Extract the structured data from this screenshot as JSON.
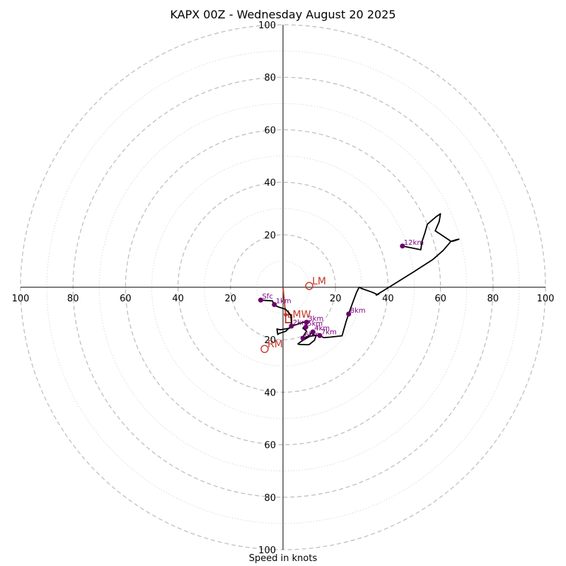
{
  "chart_data": {
    "type": "scatter",
    "title": "KAPX 00Z - Wednesday August 20 2025",
    "xlabel": "Speed in knots",
    "ylabel": "",
    "xlim": [
      -100,
      100
    ],
    "ylim": [
      -100,
      100
    ],
    "rings_major": [
      20,
      40,
      60,
      80,
      100
    ],
    "rings_minor": [
      10,
      30,
      50,
      70,
      90
    ],
    "ticks": {
      "x_left": [
        "100",
        "80",
        "60",
        "40",
        "20"
      ],
      "x_right": [
        "20",
        "40",
        "60",
        "80",
        "100"
      ],
      "y_top": [
        "100",
        "80",
        "60",
        "40",
        "20"
      ],
      "y_bottom": [
        "20",
        "40",
        "60",
        "80",
        "100"
      ]
    },
    "hodograph": [
      [
        -8.5,
        -4.9
      ],
      [
        -4.0,
        -5.2
      ],
      [
        -3.5,
        -6.8
      ],
      [
        -1.5,
        -7.6
      ],
      [
        1.0,
        -8.4
      ],
      [
        2.0,
        -9.5
      ],
      [
        3.0,
        -10.7
      ],
      [
        3.2,
        -13.3
      ],
      [
        3.2,
        -14.8
      ],
      [
        2.5,
        -15.6
      ],
      [
        -1.0,
        -16.2
      ],
      [
        -2.3,
        -15.9
      ],
      [
        -2.0,
        -18.0
      ],
      [
        -1.5,
        -17.6
      ],
      [
        1.0,
        -16.8
      ],
      [
        3.0,
        -14.9
      ],
      [
        5.5,
        -14.1
      ],
      [
        7.5,
        -13.4
      ],
      [
        9.0,
        -13.3
      ],
      [
        10.0,
        -13.3
      ],
      [
        8.2,
        -14.8
      ],
      [
        7.6,
        -15.6
      ],
      [
        9.0,
        -16.7
      ],
      [
        8.0,
        -18.2
      ],
      [
        7.6,
        -19.6
      ],
      [
        10.0,
        -18.4
      ],
      [
        11.0,
        -16.9
      ],
      [
        11.3,
        -18.0
      ],
      [
        12.6,
        -18.4
      ],
      [
        12.0,
        -20.2
      ],
      [
        10.0,
        -21.8
      ],
      [
        9.5,
        -21.9
      ],
      [
        6.3,
        -21.8
      ],
      [
        5.7,
        -21.6
      ],
      [
        7.0,
        -20.6
      ],
      [
        8.5,
        -19.7
      ],
      [
        10.0,
        -18.8
      ],
      [
        12.0,
        -18.3
      ],
      [
        14.0,
        -18.4
      ],
      [
        15.5,
        -19.2
      ],
      [
        18.0,
        -19.0
      ],
      [
        22.5,
        -18.5
      ],
      [
        24.0,
        -13.2
      ],
      [
        25.0,
        -10.2
      ],
      [
        26.5,
        -6.0
      ],
      [
        28.0,
        -2.0
      ],
      [
        29.0,
        0.0
      ],
      [
        30.0,
        -0.5
      ],
      [
        34.0,
        -1.9
      ],
      [
        36.0,
        -2.8
      ],
      [
        36.5,
        -2.6
      ],
      [
        35.5,
        -3.0
      ],
      [
        42.0,
        1.0
      ],
      [
        50.0,
        6.0
      ],
      [
        57.0,
        10.5
      ],
      [
        61.0,
        14.0
      ],
      [
        64.0,
        17.5
      ],
      [
        65.0,
        17.6
      ],
      [
        67.0,
        18.3
      ],
      [
        66.0,
        18.1
      ],
      [
        64.0,
        17.5
      ],
      [
        61.0,
        19.5
      ],
      [
        58.0,
        21.5
      ],
      [
        59.5,
        25.0
      ],
      [
        60.0,
        28.0
      ],
      [
        58.5,
        27.0
      ],
      [
        55.0,
        24.0
      ],
      [
        54.0,
        20.5
      ],
      [
        53.0,
        17.5
      ],
      [
        52.5,
        14.3
      ],
      [
        45.5,
        15.7
      ]
    ],
    "height_points": [
      {
        "label": "Sfc",
        "x": -8.5,
        "y": -4.9
      },
      {
        "label": "1km",
        "x": -3.3,
        "y": -6.6
      },
      {
        "label": "2km",
        "x": 3.2,
        "y": -14.8
      },
      {
        "label": "3km",
        "x": 9.0,
        "y": -13.3
      },
      {
        "label": "4km",
        "x": 11.4,
        "y": -17.0
      },
      {
        "label": "5km",
        "x": 8.7,
        "y": -15.2
      },
      {
        "label": "6km",
        "x": 7.6,
        "y": -19.4
      },
      {
        "label": "7km",
        "x": 14.0,
        "y": -18.4
      },
      {
        "label": "8km",
        "x": 25.0,
        "y": -10.2
      },
      {
        "label": "12km",
        "x": 45.5,
        "y": 15.7
      }
    ],
    "motion_points": [
      {
        "label": "LM",
        "x": 10.0,
        "y": 0.5
      },
      {
        "label": "RM",
        "x": -7.0,
        "y": -23.5
      }
    ],
    "mean_wind": {
      "label": "LMW",
      "x": 1.0,
      "y": -10.5
    },
    "storm_motion_vector": [
      [
        0.0,
        0.0
      ],
      [
        1.0,
        -10.5
      ],
      [
        3.3,
        -10.5
      ],
      [
        3.3,
        -13.5
      ],
      [
        1.0,
        -13.5
      ],
      [
        1.0,
        -10.5
      ]
    ],
    "colors": {
      "trace": "#000000",
      "height_marker": "#6a006a",
      "height_label": "#800080",
      "motion": "#c0392b",
      "ring": "#bbbbbb",
      "axis": "#000000"
    }
  }
}
